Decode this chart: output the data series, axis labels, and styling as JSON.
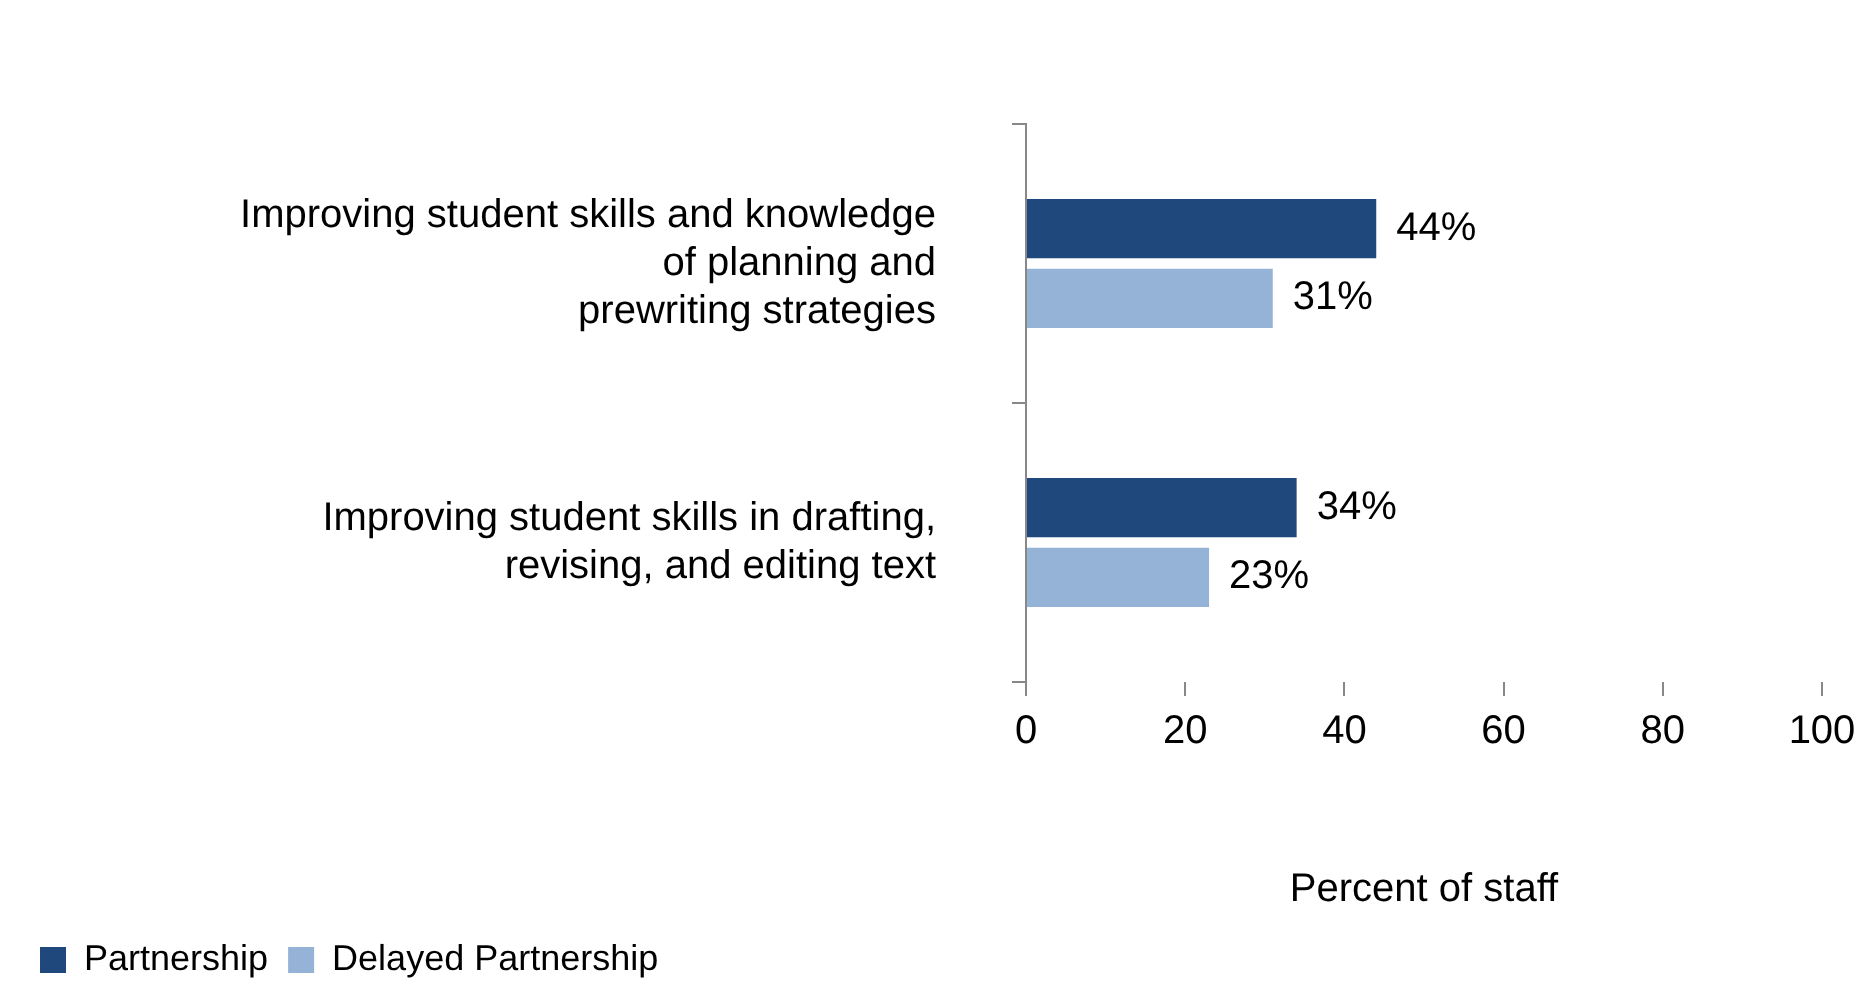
{
  "chart_data": {
    "type": "bar",
    "orientation": "horizontal",
    "xlabel": "Percent of staff",
    "categories": [
      "Improving student skills and knowledge\nof planning and\nprewriting strategies",
      "Improving student skills in drafting,\nrevising, and editing text"
    ],
    "series": [
      {
        "name": "Partnership",
        "color": "#1f497d",
        "values": [
          44,
          34
        ],
        "value_labels": [
          "44%",
          "34%"
        ]
      },
      {
        "name": "Delayed Partnership",
        "color": "#95b3d7",
        "values": [
          31,
          23
        ],
        "value_labels": [
          "31%",
          "23%"
        ]
      }
    ],
    "xlim": [
      0,
      100
    ],
    "xticks": [
      0,
      20,
      40,
      60,
      80,
      100
    ],
    "grid": false,
    "legend": "bottom left"
  }
}
